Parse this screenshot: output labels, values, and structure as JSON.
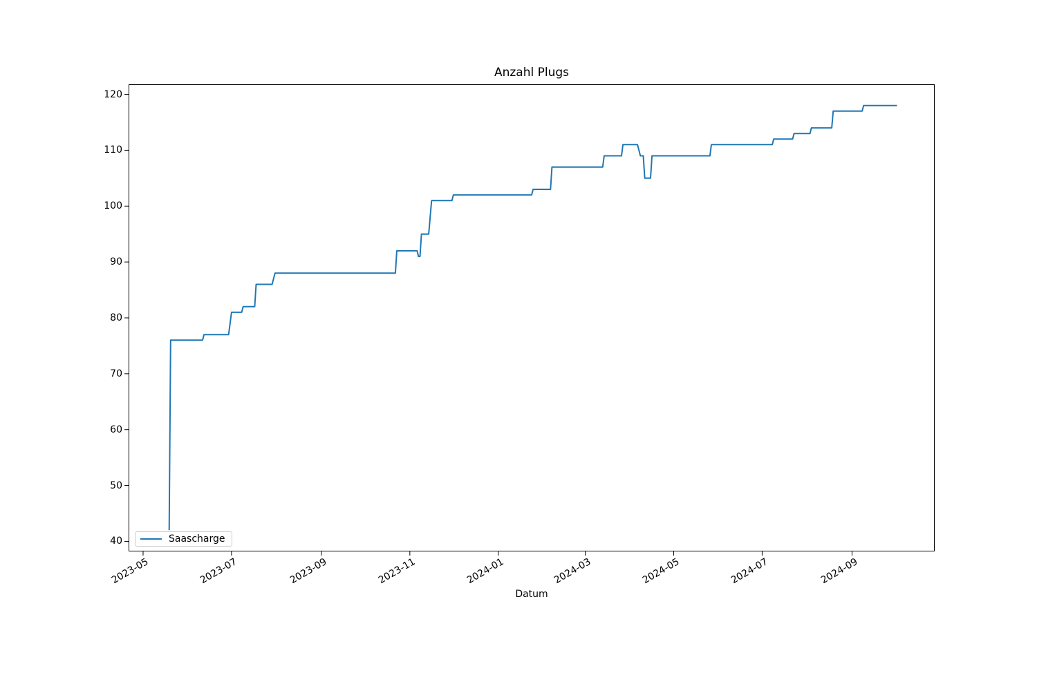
{
  "figure": {
    "background_color": "#ffffff",
    "title": "Anzahl Plugs"
  },
  "chart_data": {
    "type": "line",
    "title": "Anzahl Plugs",
    "xlabel": "Datum",
    "ylabel": "",
    "grid": false,
    "legend_position": "lower left",
    "line_color": "#1f77b4",
    "axis_color": "#000000",
    "xlim": [
      "2023-04-21",
      "2024-10-28"
    ],
    "ylim": [
      38.2,
      121.8
    ],
    "yticks": [
      40,
      50,
      60,
      70,
      80,
      90,
      100,
      110,
      120
    ],
    "xticks": [
      {
        "value": "2023-05-01",
        "label": "2023-05"
      },
      {
        "value": "2023-07-01",
        "label": "2023-07"
      },
      {
        "value": "2023-09-01",
        "label": "2023-09"
      },
      {
        "value": "2023-11-01",
        "label": "2023-11"
      },
      {
        "value": "2024-01-01",
        "label": "2024-01"
      },
      {
        "value": "2024-03-01",
        "label": "2024-03"
      },
      {
        "value": "2024-05-01",
        "label": "2024-05"
      },
      {
        "value": "2024-07-01",
        "label": "2024-07"
      },
      {
        "value": "2024-09-01",
        "label": "2024-09"
      }
    ],
    "series": [
      {
        "name": "Saascharge",
        "color": "#1f77b4",
        "points": [
          [
            "2023-05-19",
            42
          ],
          [
            "2023-05-20",
            76
          ],
          [
            "2023-06-11",
            76
          ],
          [
            "2023-06-12",
            77
          ],
          [
            "2023-06-29",
            77
          ],
          [
            "2023-07-01",
            81
          ],
          [
            "2023-07-08",
            81
          ],
          [
            "2023-07-09",
            82
          ],
          [
            "2023-07-17",
            82
          ],
          [
            "2023-07-18",
            86
          ],
          [
            "2023-07-29",
            86
          ],
          [
            "2023-07-31",
            88
          ],
          [
            "2023-10-22",
            88
          ],
          [
            "2023-10-23",
            92
          ],
          [
            "2023-11-06",
            92
          ],
          [
            "2023-11-07",
            91
          ],
          [
            "2023-11-08",
            91
          ],
          [
            "2023-11-09",
            95
          ],
          [
            "2023-11-14",
            95
          ],
          [
            "2023-11-16",
            101
          ],
          [
            "2023-11-30",
            101
          ],
          [
            "2023-12-01",
            102
          ],
          [
            "2024-01-24",
            102
          ],
          [
            "2024-01-25",
            103
          ],
          [
            "2024-02-06",
            103
          ],
          [
            "2024-02-07",
            107
          ],
          [
            "2024-03-13",
            107
          ],
          [
            "2024-03-14",
            109
          ],
          [
            "2024-03-26",
            109
          ],
          [
            "2024-03-27",
            111
          ],
          [
            "2024-04-06",
            111
          ],
          [
            "2024-04-08",
            109
          ],
          [
            "2024-04-10",
            109
          ],
          [
            "2024-04-11",
            105
          ],
          [
            "2024-04-15",
            105
          ],
          [
            "2024-04-16",
            109
          ],
          [
            "2024-05-26",
            109
          ],
          [
            "2024-05-27",
            111
          ],
          [
            "2024-07-08",
            111
          ],
          [
            "2024-07-09",
            112
          ],
          [
            "2024-07-22",
            112
          ],
          [
            "2024-07-23",
            113
          ],
          [
            "2024-08-03",
            113
          ],
          [
            "2024-08-04",
            114
          ],
          [
            "2024-08-18",
            114
          ],
          [
            "2024-08-19",
            117
          ],
          [
            "2024-09-08",
            117
          ],
          [
            "2024-09-09",
            118
          ],
          [
            "2024-10-02",
            118
          ]
        ]
      }
    ]
  }
}
